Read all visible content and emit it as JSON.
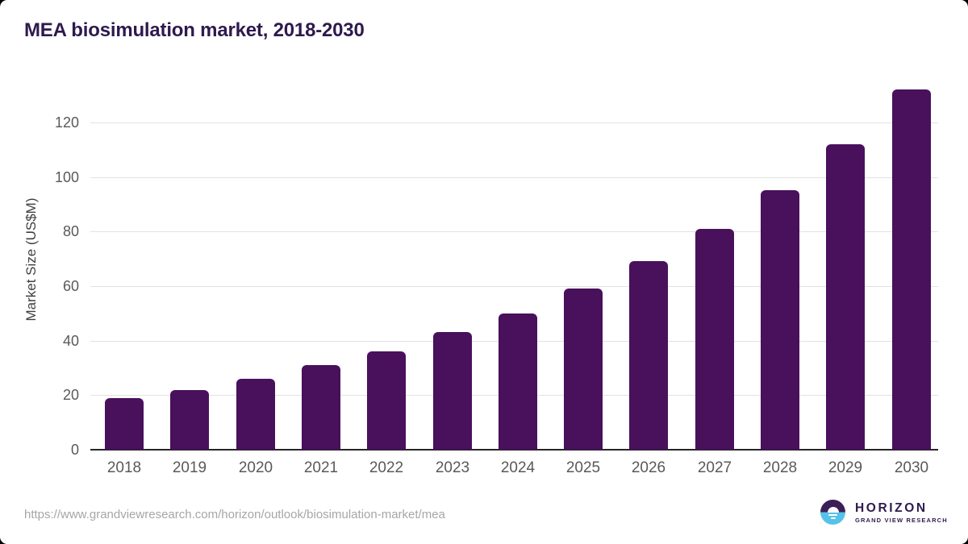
{
  "header": {
    "title": "MEA biosimulation market, 2018-2030"
  },
  "chart_data": {
    "type": "bar",
    "title": "MEA biosimulation market, 2018-2030",
    "categories": [
      "2018",
      "2019",
      "2020",
      "2021",
      "2022",
      "2023",
      "2024",
      "2025",
      "2026",
      "2027",
      "2028",
      "2029",
      "2030"
    ],
    "values": [
      19,
      22,
      26,
      31,
      36,
      43,
      50,
      59,
      69,
      81,
      95,
      112,
      132
    ],
    "xlabel": "",
    "ylabel": "Market Size (US$M)",
    "yticks": [
      0,
      20,
      40,
      60,
      80,
      100,
      120
    ],
    "ylim": [
      0,
      135
    ],
    "grid": "horizontal",
    "legend": "none"
  },
  "footer": {
    "source_url": "https://www.grandviewresearch.com/horizon/outlook/biosimulation-market/mea",
    "logo": {
      "name": "HORIZON",
      "subtitle": "GRAND VIEW RESEARCH"
    }
  },
  "colors": {
    "bar": "#49105b",
    "title": "#2e1a4d",
    "gridline": "#e2e2e2",
    "axis_line": "#262626",
    "tick_label": "#595959",
    "source_text": "#a6a6a6",
    "logo_text": "#2e1a4d",
    "logo_circle_top": "#3b1f57",
    "logo_circle_bottom": "#56c2e9"
  }
}
